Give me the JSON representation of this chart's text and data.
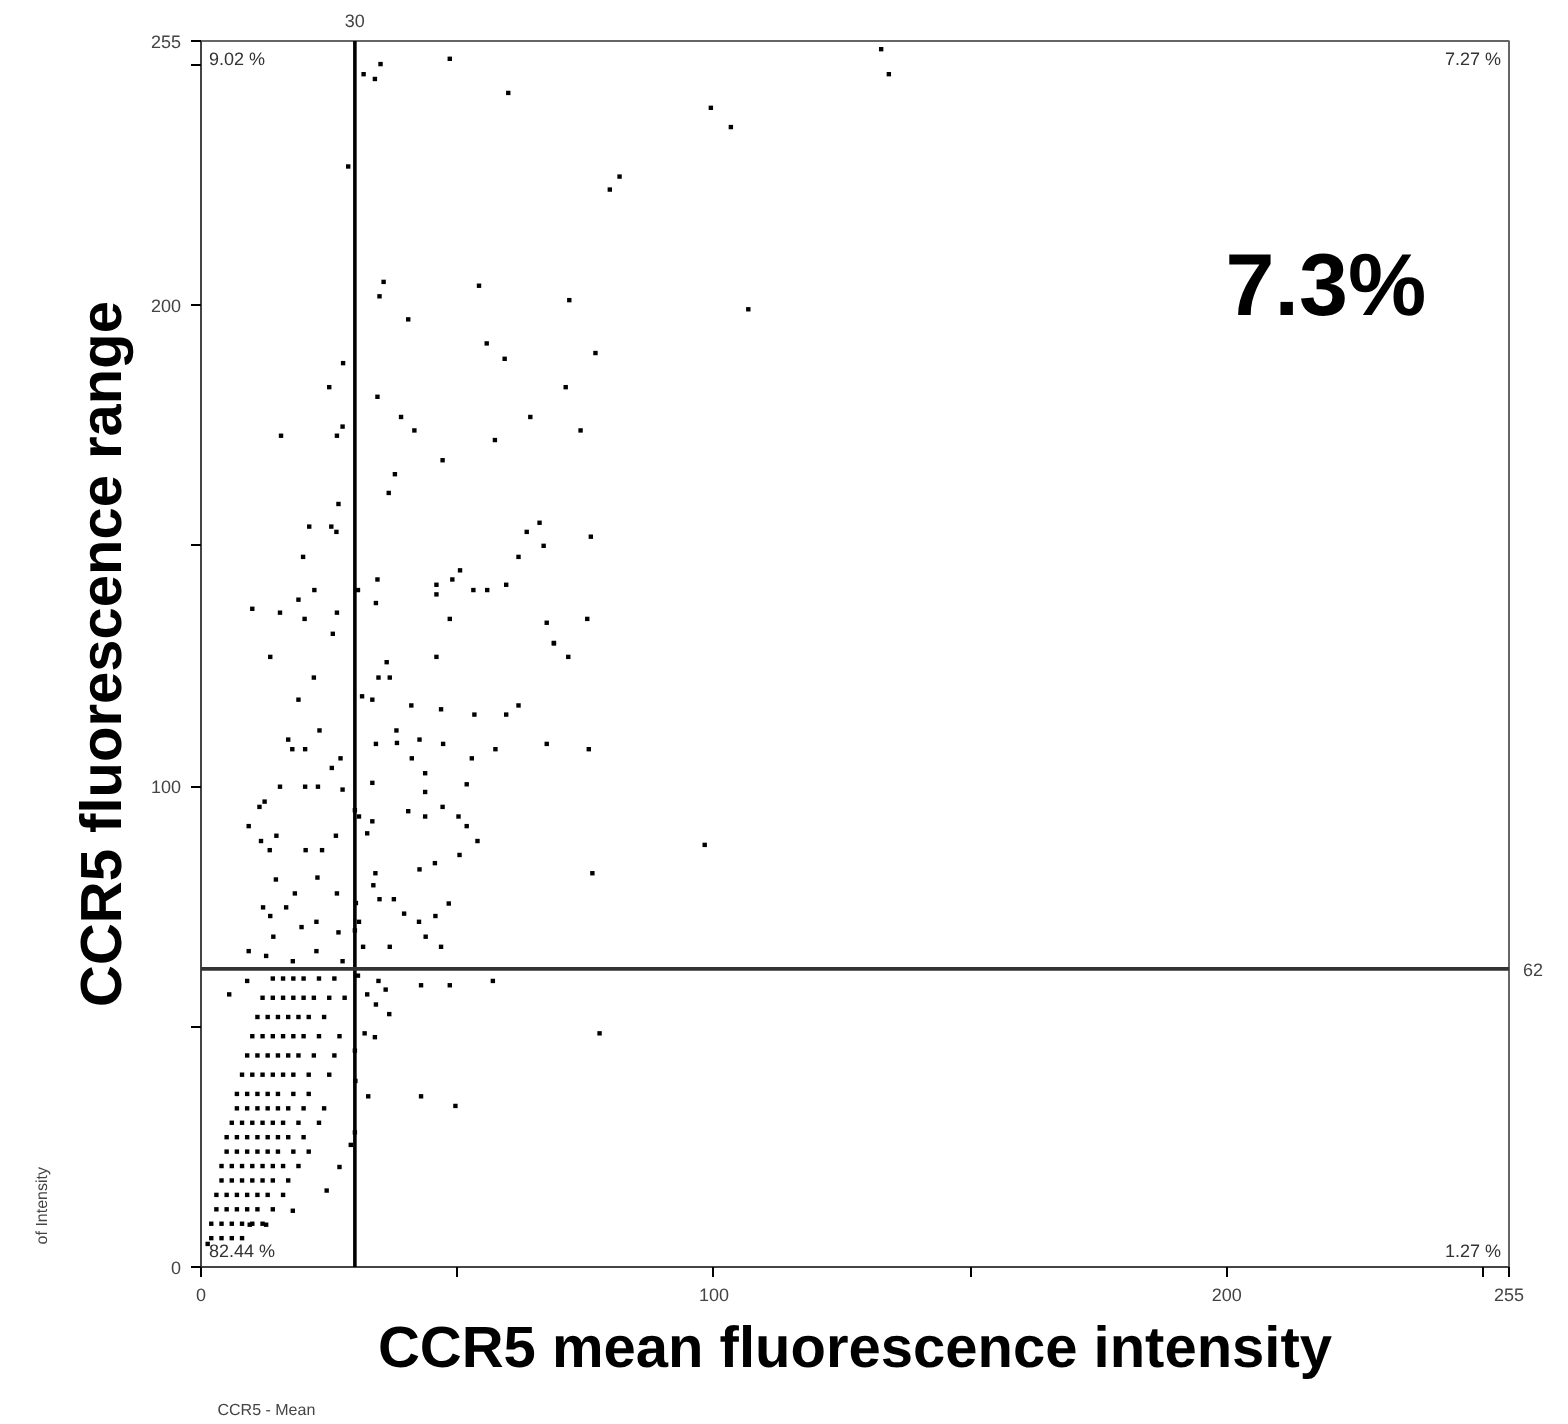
{
  "chart_data": {
    "type": "scatter",
    "xlabel": "CCR5 mean fluorescence intensity",
    "ylabel": "CCR5 fluorescence range",
    "xlim": [
      0,
      255
    ],
    "ylim": [
      0,
      255
    ],
    "xticks": [
      0,
      {
        "value": 50,
        "label": null
      },
      100,
      {
        "value": 150,
        "label": null
      },
      200,
      {
        "value": 250,
        "label": null
      },
      255
    ],
    "yticks": [
      0,
      {
        "value": 50,
        "label": null
      },
      100,
      {
        "value": 150,
        "label": null
      },
      200,
      {
        "value": 250,
        "label": null
      },
      255
    ],
    "grid": false,
    "marker": "square",
    "ref_lines": [
      {
        "axis": "x",
        "value": 30,
        "label": "30",
        "color": "#000000"
      },
      {
        "axis": "y",
        "value": 62,
        "label": "62",
        "color": "#333333"
      }
    ],
    "annotations": [
      "9.02 %",
      "7.27 %",
      "82.44 %",
      "1.27 %",
      "7.3%",
      "of Intensity",
      "CCR5 - Mean"
    ],
    "series": [
      {
        "color": "#000000",
        "x": [
          132.6,
          134.1,
          48.5,
          35.0,
          31.7,
          33.9,
          59.9,
          99.4,
          103.3,
          28.7,
          81.6,
          79.7,
          35.6,
          34.8,
          54.2,
          71.8,
          106.7,
          40.4,
          55.7,
          59.2,
          76.9,
          27.7,
          25.0,
          34.4,
          71.1,
          15.6,
          26.5,
          27.6,
          39.0,
          41.6,
          64.2,
          74.0,
          57.3,
          47.1,
          37.8,
          36.6,
          26.8,
          21.1,
          25.4,
          26.4,
          19.9,
          66.0,
          63.5,
          66.8,
          76.0,
          61.9,
          34.4,
          50.5,
          49.0,
          45.9,
          45.9,
          53.1,
          55.8,
          59.5,
          30.6,
          22.1,
          19.0,
          10.0,
          15.4,
          20.2,
          26.5,
          34.1,
          48.5,
          67.4,
          75.3,
          68.8,
          25.7,
          13.5,
          68.8,
          71.6,
          45.9,
          36.2,
          34.6,
          36.8,
          22.0,
          19.0,
          31.4,
          33.4,
          46.8,
          53.3,
          59.5,
          61.9,
          41.0,
          23.1,
          38.1,
          17.0,
          17.8,
          20.3,
          34.1,
          38.2,
          42.6,
          47.2,
          57.4,
          67.4,
          75.6,
          52.8,
          41.1,
          27.2,
          25.5,
          43.7,
          33.4,
          15.4,
          20.3,
          22.8,
          27.6,
          12.4,
          11.4,
          43.7,
          51.8,
          47.1,
          40.4,
          9.3,
          30.8,
          33.4,
          50.2,
          51.8,
          43.7,
          11.7,
          14.7,
          26.3,
          53.9,
          32.4,
          98.2,
          13.4,
          20.4,
          23.6,
          50.4,
          45.6,
          76.3,
          14.6,
          34.0,
          42.6,
          22.7,
          18.3,
          26.5,
          33.6,
          12.1,
          16.6,
          30.2,
          34.8,
          37.6,
          48.3,
          45.7,
          42.5,
          39.6,
          13.5,
          30.8,
          22.5,
          19.6,
          26.8,
          43.8,
          14.1,
          36.8,
          46.8,
          31.6,
          9.3,
          22.5,
          12.7,
          27.6,
          17.9,
          56.9,
          48.5,
          42.9,
          36.0,
          34.6,
          30.6,
          5.5,
          9.0,
          36.7,
          34.1,
          32.4,
          77.7,
          33.9,
          31.9,
          30.1,
          32.6,
          42.9,
          49.6,
          29.2,
          24.5,
          27.0,
          17.9,
          1.3,
          9.5,
          12.7,
          30,
          30,
          30,
          30,
          2,
          4,
          6,
          8,
          2,
          4,
          6,
          8,
          10,
          12,
          3,
          5,
          7,
          9,
          11,
          14,
          3,
          5,
          7,
          9,
          11,
          13,
          16,
          4,
          6,
          8,
          10,
          12,
          14,
          17,
          4,
          6,
          8,
          10,
          12,
          14,
          16,
          19,
          5,
          7,
          9,
          11,
          13,
          15,
          18,
          21,
          5,
          7,
          9,
          11,
          13,
          15,
          17,
          20,
          6,
          8,
          10,
          12,
          14,
          16,
          19,
          23,
          7,
          9,
          11,
          13,
          15,
          17,
          20,
          24,
          7,
          9,
          11,
          13,
          15,
          18,
          21,
          8,
          10,
          12,
          14,
          16,
          18,
          21,
          25,
          9,
          11,
          13,
          15,
          17,
          19,
          22,
          26,
          10,
          12,
          14,
          16,
          18,
          20,
          23,
          27,
          11,
          13,
          15,
          17,
          19,
          21,
          24,
          12,
          14,
          16,
          18,
          20,
          22,
          25,
          28,
          14,
          16,
          18,
          20,
          23,
          26
        ],
        "values": [
          253.3,
          248.1,
          251.3,
          250.2,
          248.1,
          247.1,
          244.2,
          241.1,
          237.1,
          228.9,
          226.8,
          224.1,
          204.9,
          201.9,
          204.1,
          201.1,
          199.2,
          197.1,
          192.1,
          188.9,
          190.1,
          188.0,
          183.0,
          181.0,
          183.0,
          172.9,
          172.9,
          174.8,
          176.8,
          174.0,
          176.8,
          174.0,
          172.0,
          167.8,
          164.9,
          161.0,
          158.7,
          154.0,
          154.0,
          152.9,
          147.7,
          154.8,
          152.9,
          150.0,
          151.9,
          147.7,
          143.0,
          144.9,
          143.0,
          141.9,
          139.9,
          140.8,
          140.8,
          141.9,
          140.8,
          140.8,
          138.8,
          136.9,
          136.1,
          134.8,
          136.1,
          138.1,
          134.8,
          134.0,
          134.8,
          129.7,
          131.7,
          126.9,
          129.8,
          126.9,
          126.9,
          125.8,
          122.6,
          122.6,
          122.6,
          118.0,
          118.7,
          118.0,
          116.0,
          114.9,
          114.9,
          116.8,
          116.8,
          111.6,
          111.6,
          109.7,
          107.7,
          107.7,
          108.8,
          109.0,
          109.7,
          108.8,
          107.7,
          108.8,
          107.7,
          105.8,
          105.8,
          105.8,
          103.8,
          102.7,
          100.7,
          99.9,
          99.9,
          99.9,
          99.3,
          96.8,
          95.7,
          98.8,
          100.4,
          95.7,
          94.8,
          91.7,
          93.7,
          92.7,
          93.7,
          91.7,
          93.7,
          88.6,
          89.7,
          89.7,
          88.6,
          90.2,
          87.8,
          86.7,
          86.7,
          86.7,
          85.7,
          84.0,
          81.9,
          80.6,
          81.9,
          82.7,
          81.0,
          77.7,
          77.7,
          79.4,
          74.8,
          74.8,
          75.7,
          76.5,
          76.5,
          75.6,
          73.0,
          71.8,
          73.5,
          73.0,
          71.8,
          71.8,
          70.7,
          69.6,
          68.7,
          68.7,
          66.6,
          66.6,
          66.6,
          65.7,
          65.7,
          64.7,
          63.6,
          63.6,
          59.5,
          58.6,
          58.6,
          57.7,
          59.5,
          60.6,
          56.7,
          59.5,
          52.6,
          54.6,
          56.7,
          48.6,
          47.8,
          48.6,
          38.7,
          35.5,
          35.5,
          33.5,
          25.4,
          15.9,
          20.8,
          11.7,
          4.8,
          8.8,
          8.8,
          28,
          45,
          70,
          95,
          6,
          6,
          6,
          6,
          9,
          9,
          9,
          9,
          9,
          9,
          12,
          12,
          12,
          12,
          12,
          12,
          15,
          15,
          15,
          15,
          15,
          15,
          15,
          18,
          18,
          18,
          18,
          18,
          18,
          18,
          21,
          21,
          21,
          21,
          21,
          21,
          21,
          21,
          24,
          24,
          24,
          24,
          24,
          24,
          24,
          24,
          27,
          27,
          27,
          27,
          27,
          27,
          27,
          27,
          30,
          30,
          30,
          30,
          30,
          30,
          30,
          30,
          33,
          33,
          33,
          33,
          33,
          33,
          33,
          33,
          36,
          36,
          36,
          36,
          36,
          36,
          36,
          40,
          40,
          40,
          40,
          40,
          40,
          40,
          40,
          44,
          44,
          44,
          44,
          44,
          44,
          44,
          44,
          48,
          48,
          48,
          48,
          48,
          48,
          48,
          48,
          52,
          52,
          52,
          52,
          52,
          52,
          52,
          56,
          56,
          56,
          56,
          56,
          56,
          56,
          56,
          60,
          60,
          60,
          60,
          60,
          60
        ]
      }
    ]
  }
}
